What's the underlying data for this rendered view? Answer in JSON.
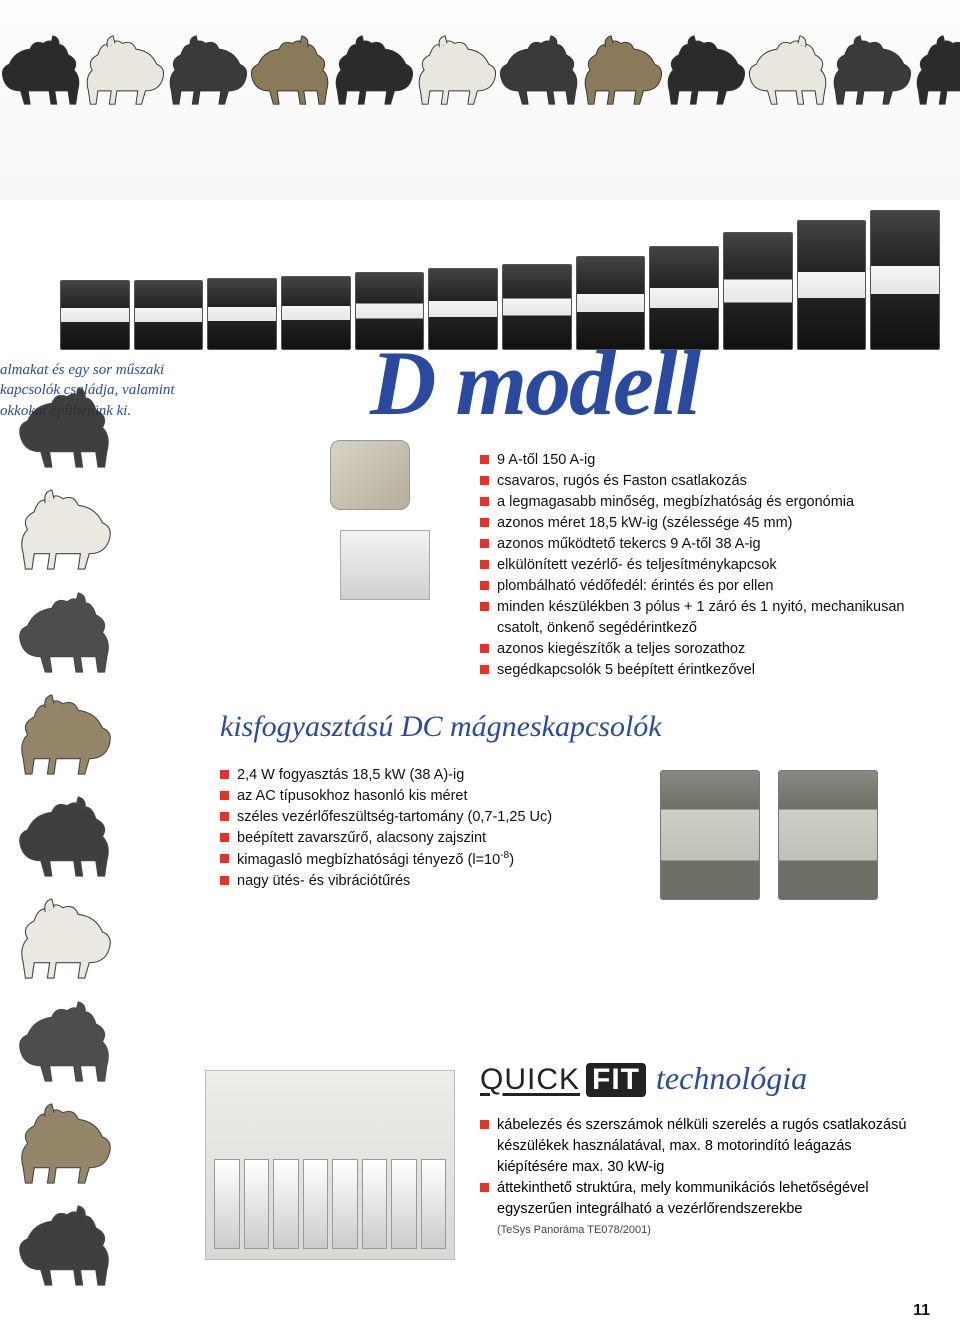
{
  "colors": {
    "accent_blue": "#2a4aa0",
    "bullet_red": "#e4322b",
    "text": "#111111",
    "background": "#ffffff"
  },
  "top_teaser": {
    "line1": "almakat és egy sor műszaki",
    "line2": "kapcsolók családja, valamint",
    "line3": "okkokat építhetünk ki."
  },
  "model_title": "D modell",
  "features_main": [
    "9 A-től 150 A-ig",
    "csavaros, rugós és Faston csatlakozás",
    "a legmagasabb minőség, megbízhatóság és ergonómia",
    "azonos méret 18,5 kW-ig (szélessége 45 mm)",
    "azonos működtető tekercs 9 A-től 38 A-ig",
    "elkülönített vezérlő- és teljesítménykapcsok",
    "plombálható védőfedél: érintés és por ellen",
    "minden készülékben 3 pólus + 1 záró és 1 nyitó, mechanikusan csatolt, önkenő segédérintkező",
    "azonos kiegészítők a teljes sorozathoz",
    "segédkapcsolók 5 beépített érintkezővel"
  ],
  "subtitle": "kisfogyasztású DC mágneskapcsolók",
  "features_dc": [
    "2,4 W fogyasztás 18,5 kW (38 A)-ig",
    "az AC típusokhoz hasonló kis méret",
    "széles vezérlőfeszültség-tartomány (0,7-1,25 Uc)",
    "beépített zavarszűrő, alacsony zajszint",
    "kimagasló megbízhatósági tényező (l=10⁻⁸)",
    "nagy ütés- és vibrációtűrés"
  ],
  "quickfit": {
    "logo_quick": "QUICK",
    "logo_fit": "FIT",
    "tech_label": "technológia",
    "items": [
      "kábelezés és szerszámok nélküli szerelés a rugós csatlakozású készülékek használatával, max. 8 motorindító leágazás kiépítésére max. 30 kW-ig",
      "áttekinthető struktúra, mely kommunikációs lehetőségével egyszerűen integrálható a vezérlőrendszerekbe"
    ],
    "note": "(TeSys Panoráma TE078/2001)"
  },
  "page_number": "11",
  "contactor_heights": [
    70,
    70,
    72,
    74,
    78,
    82,
    86,
    94,
    104,
    118,
    130,
    140
  ],
  "horse_colors": [
    "#2b2b2b",
    "#e9e6de",
    "#3a3a3a",
    "#8a7a5a",
    "#2b2b2b",
    "#e9e6de",
    "#3a3a3a",
    "#8a7a5a",
    "#2b2b2b",
    "#e9e6de",
    "#3a3a3a",
    "#2b2b2b"
  ]
}
